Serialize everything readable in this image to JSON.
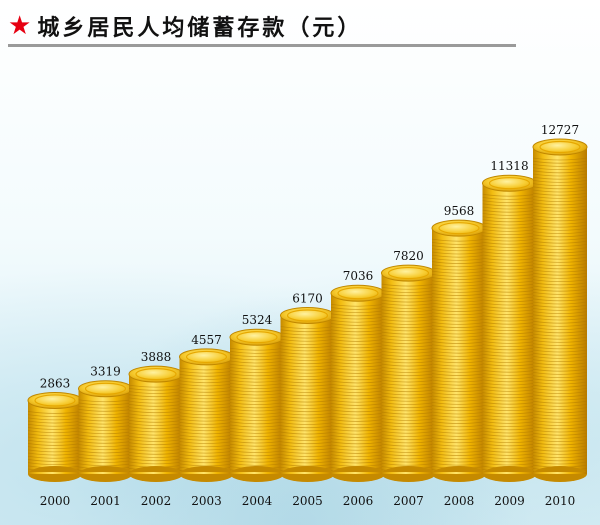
{
  "header": {
    "star_icon": "red-star-icon",
    "title": "城乡居民人均储蓄存款（元）"
  },
  "colors": {
    "accent": "#e60012",
    "coin_light": "#ffe36a",
    "coin_mid": "#f0b800",
    "coin_dark": "#c98a00"
  },
  "chart_data": {
    "type": "bar",
    "title": "城乡居民人均储蓄存款（元）",
    "xlabel": "",
    "ylabel": "",
    "categories": [
      "2000",
      "2001",
      "2002",
      "2003",
      "2004",
      "2005",
      "2006",
      "2007",
      "2008",
      "2009",
      "2010"
    ],
    "values": [
      2863,
      3319,
      3888,
      4557,
      5324,
      6170,
      7036,
      7820,
      9568,
      11318,
      12727
    ],
    "ylim": [
      0,
      12727
    ],
    "grid": false,
    "legend": "none"
  }
}
